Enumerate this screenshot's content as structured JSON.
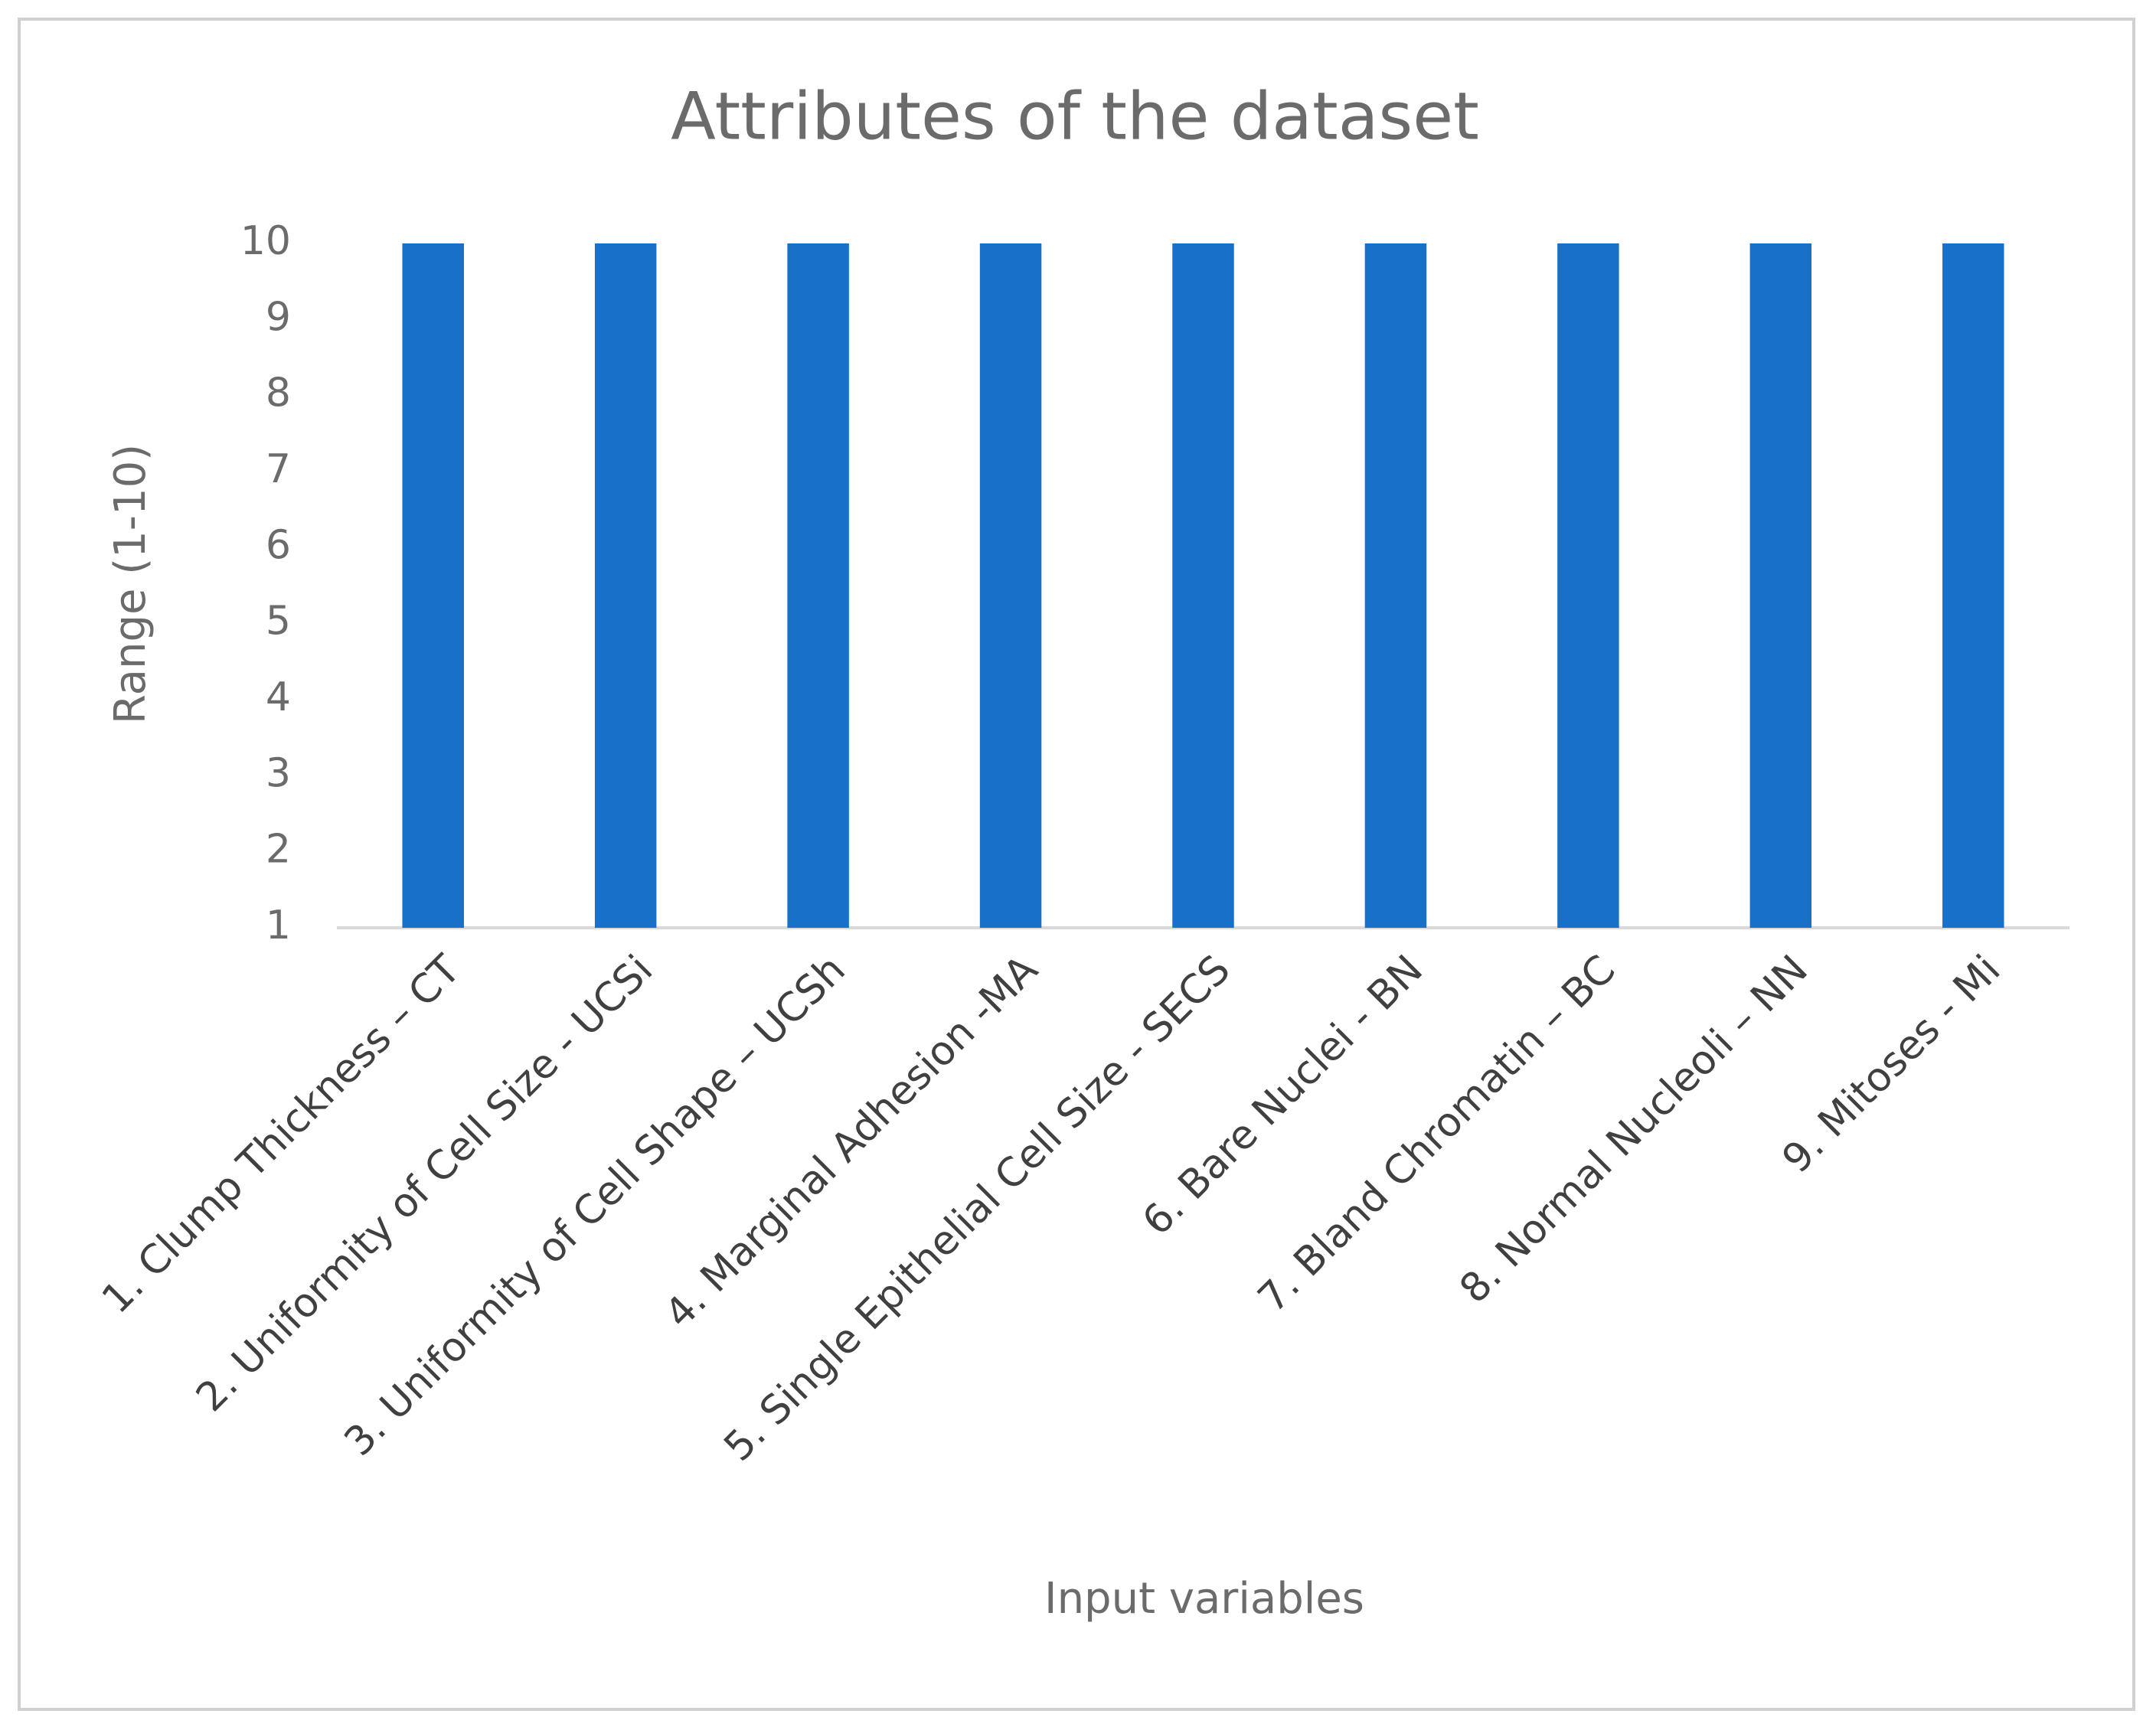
{
  "chart_data": {
    "type": "bar",
    "title": "Attributes of the dataset",
    "y_label": "Range (1-10)",
    "x_label": "Input variables",
    "categories": [
      "1. Clump Thickness – CT",
      "2. Uniformity of Cell Size - UCSi",
      "3. Uniformity of Cell Shape – UCSh",
      "4. Marginal Adhesion -MA",
      "5. Single Epithelial Cell Size - SECS",
      "6. Bare Nuclei - BN",
      "7. Bland Chromatin – BC",
      "8. Normal Nucleoli – NN",
      "9. Mitoses - Mi"
    ],
    "values": [
      10,
      10,
      10,
      10,
      10,
      10,
      10,
      10,
      10
    ],
    "color": "#1870c8",
    "ylim": [
      1,
      10
    ],
    "yticks": [
      1,
      2,
      3,
      4,
      5,
      6,
      7,
      8,
      9,
      10
    ],
    "grid": false
  }
}
